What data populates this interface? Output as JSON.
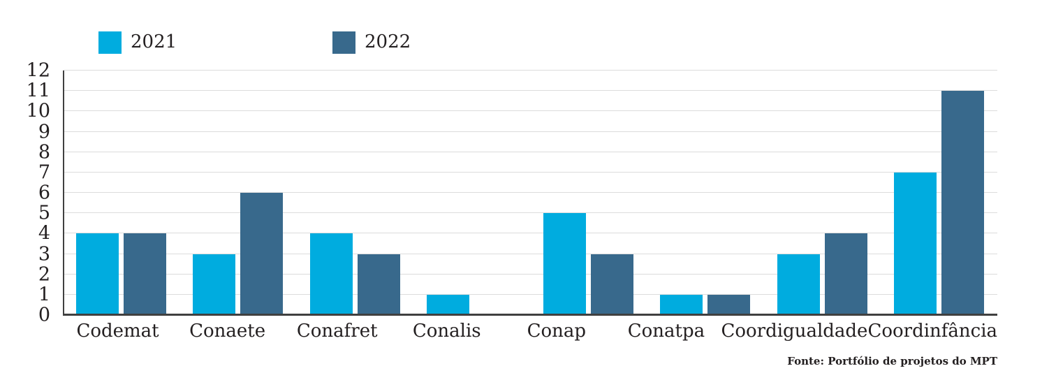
{
  "legend": {
    "items": [
      {
        "label": "2021",
        "color": "#00ACDF"
      },
      {
        "label": "2022",
        "color": "#38698C"
      }
    ]
  },
  "source_note": "Fonte: Portfólio de projetos do MPT",
  "chart_data": {
    "type": "bar",
    "title": "",
    "xlabel": "",
    "ylabel": "",
    "categories": [
      "Codemat",
      "Conaete",
      "Conafret",
      "Conalis",
      "Conap",
      "Conatpa",
      "Coordigualdade",
      "Coordinfância"
    ],
    "series": [
      {
        "name": "2021",
        "color": "#00ACDF",
        "values": [
          4,
          3,
          4,
          1,
          5,
          1,
          3,
          7
        ]
      },
      {
        "name": "2022",
        "color": "#38698C",
        "values": [
          4,
          6,
          3,
          0,
          3,
          1,
          4,
          11
        ]
      }
    ],
    "ylim": [
      0,
      12
    ],
    "ytick_interval": 1,
    "grid": true,
    "legend_position": "top-left",
    "gridline_color": "#DCDCDC",
    "axis_color": "#404040",
    "text_color": "#231F20"
  }
}
